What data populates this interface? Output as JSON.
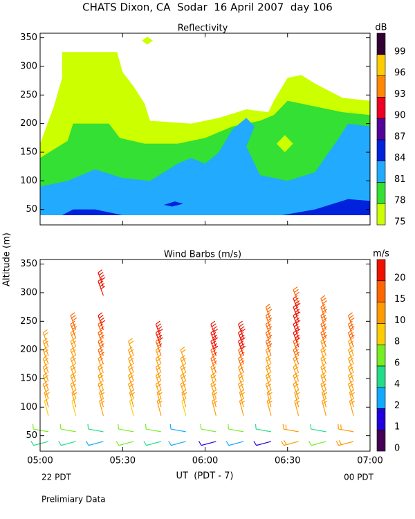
{
  "title": "CHATS Dixon, CA  Sodar  16 April 2007  day 106",
  "footer": "Prelimiary Data",
  "chart_data": [
    {
      "type": "contour",
      "title": "Reflectivity",
      "ylabel": "Altitude (m)",
      "colorbar_label": "dB",
      "xlim": [
        0,
        120
      ],
      "ylim": [
        23,
        358
      ],
      "yticks": [
        50,
        100,
        150,
        200,
        250,
        300,
        350
      ],
      "levels": [
        75,
        78,
        81,
        84,
        87,
        90,
        93,
        96,
        99
      ],
      "colors": [
        "#ccff00",
        "#33e033",
        "#22aaff",
        "#0022dd",
        "#550099",
        "#ee0022",
        "#ff8800",
        "#ffcc00",
        "#330033"
      ],
      "regions": [
        {
          "level": 75,
          "points": [
            [
              0,
              40
            ],
            [
              0,
              165
            ],
            [
              5,
              230
            ],
            [
              8,
              280
            ],
            [
              8,
              325
            ],
            [
              28,
              325
            ],
            [
              30,
              290
            ],
            [
              34,
              265
            ],
            [
              38,
              235
            ],
            [
              40,
              205
            ],
            [
              55,
              200
            ],
            [
              65,
              210
            ],
            [
              75,
              225
            ],
            [
              83,
              220
            ],
            [
              85,
              240
            ],
            [
              90,
              280
            ],
            [
              95,
              285
            ],
            [
              100,
              270
            ],
            [
              110,
              245
            ],
            [
              120,
              240
            ],
            [
              120,
              40
            ]
          ]
        },
        {
          "level": 75,
          "points": [
            [
              37,
              345
            ],
            [
              39,
              352
            ],
            [
              41,
              345
            ],
            [
              39,
              338
            ]
          ]
        },
        {
          "level": 78,
          "points": [
            [
              0,
              40
            ],
            [
              0,
              140
            ],
            [
              10,
              170
            ],
            [
              12,
              200
            ],
            [
              25,
              200
            ],
            [
              29,
              175
            ],
            [
              38,
              165
            ],
            [
              50,
              165
            ],
            [
              60,
              175
            ],
            [
              70,
              195
            ],
            [
              80,
              205
            ],
            [
              85,
              215
            ],
            [
              90,
              240
            ],
            [
              100,
              230
            ],
            [
              110,
              220
            ],
            [
              120,
              215
            ],
            [
              120,
              40
            ]
          ]
        },
        {
          "level": 75,
          "points": [
            [
              86,
              165
            ],
            [
              89,
              180
            ],
            [
              92,
              165
            ],
            [
              89,
              150
            ]
          ]
        },
        {
          "level": 81,
          "points": [
            [
              0,
              40
            ],
            [
              0,
              90
            ],
            [
              10,
              100
            ],
            [
              20,
              120
            ],
            [
              30,
              105
            ],
            [
              40,
              100
            ],
            [
              50,
              130
            ],
            [
              55,
              140
            ],
            [
              60,
              130
            ],
            [
              65,
              150
            ],
            [
              70,
              190
            ],
            [
              75,
              210
            ],
            [
              78,
              195
            ],
            [
              75,
              160
            ],
            [
              80,
              110
            ],
            [
              90,
              100
            ],
            [
              100,
              115
            ],
            [
              105,
              150
            ],
            [
              108,
              170
            ],
            [
              112,
              200
            ],
            [
              120,
              195
            ],
            [
              120,
              40
            ]
          ]
        },
        {
          "level": 84,
          "points": [
            [
              8,
              40
            ],
            [
              12,
              50
            ],
            [
              20,
              50
            ],
            [
              30,
              40
            ]
          ]
        },
        {
          "level": 84,
          "points": [
            [
              45,
              58
            ],
            [
              49,
              64
            ],
            [
              52,
              60
            ],
            [
              48,
              55
            ]
          ]
        },
        {
          "level": 84,
          "points": [
            [
              88,
              40
            ],
            [
              100,
              50
            ],
            [
              112,
              68
            ],
            [
              120,
              65
            ],
            [
              120,
              40
            ]
          ]
        }
      ]
    },
    {
      "type": "barbs",
      "title": "Wind Barbs (m/s)",
      "colorbar_label": "m/s",
      "xlabel": "UT  (PDT - 7)",
      "x_left_note": "22 PDT",
      "x_right_note": "00 PDT",
      "xlim": [
        0,
        120
      ],
      "ylim": [
        23,
        358
      ],
      "yticks": [
        50,
        100,
        150,
        200,
        250,
        300,
        350
      ],
      "xticks": [
        {
          "value": 0,
          "label": "05:00"
        },
        {
          "value": 30,
          "label": "05:30"
        },
        {
          "value": 60,
          "label": "06:00"
        },
        {
          "value": 90,
          "label": "06:30"
        },
        {
          "value": 120,
          "label": "07:00"
        }
      ],
      "levels": [
        0,
        1,
        2,
        4,
        6,
        8,
        10,
        15,
        20
      ],
      "colors": [
        "#440055",
        "#2200dd",
        "#11aaff",
        "#22dd88",
        "#77ee22",
        "#ffcc00",
        "#ff9900",
        "#ff6600",
        "#ee1100"
      ],
      "altitudes": [
        40,
        57,
        85,
        100,
        115,
        130,
        145,
        160,
        175,
        190,
        205,
        220,
        235,
        250,
        265,
        280,
        295,
        310
      ],
      "directions": [
        255,
        280,
        345,
        345,
        340,
        340,
        340,
        340,
        340,
        340,
        340,
        340,
        340,
        340,
        340,
        340,
        340,
        340
      ],
      "columns": [
        {
          "time": 3,
          "speeds": [
            5,
            6,
            9,
            10,
            11,
            11,
            12,
            12,
            13,
            13,
            14,
            null,
            null,
            null,
            null,
            null,
            null,
            null
          ]
        },
        {
          "time": 13,
          "speeds": [
            4,
            7,
            9,
            10,
            11,
            12,
            12,
            13,
            13,
            13,
            14,
            15,
            15,
            null,
            null,
            null,
            null,
            null
          ]
        },
        {
          "time": 23,
          "speeds": [
            3,
            5,
            10,
            11,
            12,
            13,
            13,
            14,
            15,
            16,
            17,
            18,
            20,
            null,
            null,
            null,
            20,
            20
          ]
        },
        {
          "time": 34,
          "speeds": [
            6,
            7,
            9,
            10,
            11,
            11,
            12,
            12,
            13,
            13,
            null,
            null,
            null,
            null,
            null,
            null,
            null,
            null
          ]
        },
        {
          "time": 44,
          "speeds": [
            4,
            6,
            10,
            11,
            12,
            12,
            13,
            13,
            14,
            15,
            20,
            20,
            null,
            null,
            null,
            null,
            null,
            null
          ]
        },
        {
          "time": 53,
          "speeds": [
            2,
            3,
            9,
            10,
            11,
            11,
            12,
            12,
            13,
            null,
            null,
            null,
            null,
            null,
            null,
            null,
            null,
            null
          ]
        },
        {
          "time": 64,
          "speeds": [
            1,
            6,
            10,
            11,
            12,
            13,
            14,
            15,
            16,
            20,
            20,
            20,
            null,
            null,
            null,
            null,
            null,
            null
          ]
        },
        {
          "time": 74,
          "speeds": [
            2,
            6,
            10,
            11,
            12,
            13,
            14,
            15,
            16,
            20,
            20,
            20,
            null,
            null,
            null,
            null,
            null,
            null
          ]
        },
        {
          "time": 84,
          "speeds": [
            1,
            5,
            10,
            11,
            12,
            12,
            13,
            13,
            14,
            15,
            15,
            15,
            16,
            16,
            null,
            null,
            null,
            null
          ]
        },
        {
          "time": 94,
          "speeds": [
            10,
            10,
            11,
            11,
            12,
            12,
            13,
            14,
            15,
            16,
            20,
            20,
            20,
            20,
            20,
            16,
            null,
            null
          ]
        },
        {
          "time": 104,
          "speeds": [
            6,
            4,
            10,
            11,
            12,
            12,
            13,
            13,
            14,
            14,
            15,
            15,
            16,
            16,
            16,
            null,
            null,
            null
          ]
        },
        {
          "time": 114,
          "speeds": [
            10,
            10,
            10,
            11,
            12,
            12,
            13,
            13,
            14,
            14,
            15,
            15,
            16,
            null,
            null,
            null,
            null,
            null
          ]
        }
      ]
    }
  ]
}
